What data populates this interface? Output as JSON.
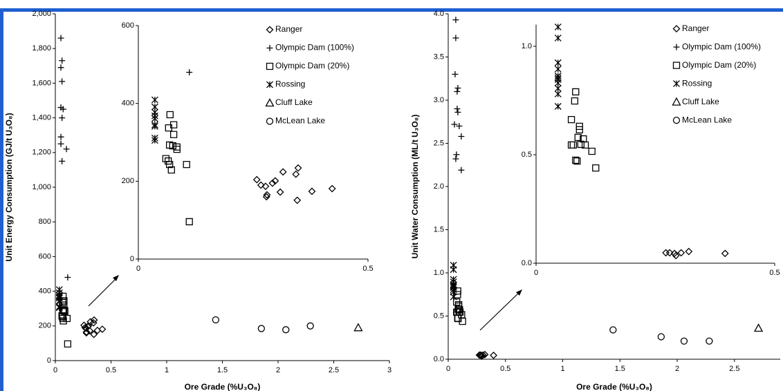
{
  "chart_data": [
    {
      "type": "scatter",
      "xlabel": "Ore Grade (%U₃O₈)",
      "ylabel": "Unit Energy Consumption (GJ/t U₃O₈)",
      "color": "#000000",
      "xlim": [
        0,
        3
      ],
      "ylim": [
        0,
        2000
      ],
      "xticks": [
        0,
        0.5,
        1,
        1.5,
        2,
        2.5,
        3
      ],
      "yticks": [
        0,
        200,
        400,
        600,
        800,
        {
          "value": 1000,
          "label": "1,000"
        },
        {
          "value": 1200,
          "label": "1,200"
        },
        {
          "value": 1400,
          "label": "1,400"
        },
        {
          "value": 1600,
          "label": "1,600"
        },
        {
          "value": 1800,
          "label": "1,800"
        },
        {
          "value": 2000,
          "label": "2,000"
        }
      ],
      "series": [
        {
          "marker": "diamond",
          "x": [
            0.258,
            0.267,
            0.277,
            0.28,
            0.279,
            0.292,
            0.298,
            0.309,
            0.315,
            0.343,
            0.348,
            0.346,
            0.378,
            0.422
          ],
          "values": [
            204,
            190,
            187,
            165,
            160,
            195,
            201,
            172,
            224,
            218,
            234,
            151,
            174,
            181
          ]
        },
        {
          "marker": "plus",
          "x": [
            0.05,
            0.06,
            0.05,
            0.06,
            0.05,
            0.07,
            0.06,
            0.05,
            0.05,
            0.1,
            0.06,
            0.111
          ],
          "values": [
            1860,
            1730,
            1690,
            1610,
            1460,
            1450,
            1400,
            1290,
            1250,
            1220,
            1150,
            480
          ]
        },
        {
          "marker": "square",
          "x": [
            0.069,
            0.066,
            0.077,
            0.077,
            0.068,
            0.075,
            0.084,
            0.084,
            0.06,
            0.065,
            0.068,
            0.072,
            0.105,
            0.111
          ],
          "values": [
            371,
            337,
            345,
            320,
            293,
            291,
            288,
            282,
            258,
            252,
            243,
            229,
            243,
            96
          ]
        },
        {
          "marker": "asterisk",
          "x": [
            0.036,
            0.036,
            0.036,
            0.036,
            0.036,
            0.036,
            0.036,
            0.036,
            0.036
          ],
          "values": [
            409,
            391,
            377,
            368,
            361,
            345,
            341,
            311,
            305
          ]
        },
        {
          "marker": "triangle",
          "x": [
            2.72
          ],
          "values": [
            190
          ]
        },
        {
          "marker": "circle",
          "x": [
            1.44,
            1.85,
            2.07,
            2.29
          ],
          "values": [
            235,
            185,
            178,
            200
          ]
        }
      ]
    },
    {
      "type": "scatter",
      "color": "#000000",
      "legend": "top right",
      "xlim": [
        0,
        0.5
      ],
      "ylim": [
        0,
        600
      ],
      "xticks": [
        0,
        0.5
      ],
      "yticks": [
        0,
        200,
        400,
        600
      ],
      "series": [
        {
          "name": "Ranger",
          "marker": "diamond",
          "x": [
            0.258,
            0.267,
            0.277,
            0.28,
            0.279,
            0.292,
            0.298,
            0.309,
            0.315,
            0.343,
            0.348,
            0.346,
            0.378,
            0.422
          ],
          "values": [
            204,
            190,
            187,
            165,
            160,
            195,
            201,
            172,
            224,
            218,
            234,
            151,
            174,
            181
          ]
        },
        {
          "name": "Olympic Dam (100%)",
          "marker": "plus",
          "x": [
            0.111
          ],
          "values": [
            480
          ]
        },
        {
          "name": "Olympic Dam (20%)",
          "marker": "square",
          "x": [
            0.069,
            0.066,
            0.077,
            0.077,
            0.068,
            0.075,
            0.084,
            0.084,
            0.06,
            0.065,
            0.068,
            0.072,
            0.105,
            0.111
          ],
          "values": [
            371,
            337,
            345,
            320,
            293,
            291,
            288,
            282,
            258,
            252,
            243,
            229,
            243,
            96
          ]
        },
        {
          "name": "Rossing",
          "marker": "asterisk",
          "x": [
            0.036,
            0.036,
            0.036,
            0.036,
            0.036,
            0.036,
            0.036,
            0.036,
            0.036
          ],
          "values": [
            409,
            391,
            377,
            368,
            361,
            345,
            341,
            311,
            305
          ]
        },
        {
          "name": "Cluff Lake",
          "marker": "triangle",
          "x": [],
          "values": []
        },
        {
          "name": "McLean Lake",
          "marker": "circle",
          "x": [],
          "values": []
        }
      ]
    },
    {
      "type": "scatter",
      "xlabel": "Ore Grade (%U₃O₈)",
      "ylabel": "Unit Water Consumption (ML/t U₃O₈)",
      "color": "#000000",
      "xlim": [
        0,
        2.9
      ],
      "ylim": [
        0,
        4
      ],
      "xticks": [
        0,
        0.5,
        1,
        1.5,
        2,
        2.5
      ],
      "yticks": [
        {
          "value": 0,
          "label": "0.0"
        },
        0.5,
        {
          "value": 1,
          "label": "1.0"
        },
        1.5,
        {
          "value": 2,
          "label": "2.0"
        },
        2.5,
        {
          "value": 3,
          "label": "3.0"
        },
        3.5,
        {
          "value": 4,
          "label": "4.0"
        }
      ],
      "series": [
        {
          "marker": "diamond",
          "x": [
            0.272,
            0.28,
            0.29,
            0.293,
            0.304,
            0.32,
            0.396
          ],
          "values": [
            0.048,
            0.048,
            0.045,
            0.035,
            0.048,
            0.054,
            0.045
          ]
        },
        {
          "marker": "plus",
          "x": [
            0.066,
            0.066,
            0.06,
            0.084,
            0.078,
            0.078,
            0.084,
            0.054,
            0.096,
            0.114,
            0.072,
            0.066,
            0.114
          ],
          "values": [
            3.93,
            3.72,
            3.3,
            3.14,
            3.1,
            2.9,
            2.86,
            2.72,
            2.7,
            2.58,
            2.37,
            2.32,
            2.19
          ]
        },
        {
          "marker": "square",
          "x": [
            0.083,
            0.081,
            0.074,
            0.091,
            0.091,
            0.088,
            0.099,
            0.094,
            0.074,
            0.078,
            0.103,
            0.117,
            0.083,
            0.086,
            0.125
          ],
          "values": [
            0.79,
            0.748,
            0.662,
            0.631,
            0.615,
            0.58,
            0.573,
            0.548,
            0.545,
            0.545,
            0.545,
            0.516,
            0.475,
            0.471,
            0.439
          ]
        },
        {
          "marker": "asterisk",
          "x": [
            0.046,
            0.046,
            0.046,
            0.046,
            0.046,
            0.046,
            0.046,
            0.046,
            0.046,
            0.046,
            0.046
          ],
          "values": [
            1.089,
            1.038,
            0.924,
            0.895,
            0.863,
            0.847,
            0.854,
            0.831,
            0.806,
            0.78,
            0.723
          ]
        },
        {
          "marker": "triangle",
          "x": [
            2.71
          ],
          "values": [
            0.36
          ]
        },
        {
          "marker": "circle",
          "x": [
            1.44,
            1.86,
            2.06,
            2.28
          ],
          "values": [
            0.34,
            0.26,
            0.21,
            0.21
          ]
        }
      ]
    },
    {
      "type": "scatter",
      "color": "#000000",
      "legend": "top right",
      "xlim": [
        0,
        0.5
      ],
      "ylim": [
        0,
        1.1
      ],
      "xticks": [
        0,
        0.5
      ],
      "yticks": [
        {
          "value": 0,
          "label": "0.0"
        },
        0.5,
        {
          "value": 1,
          "label": "1.0"
        }
      ],
      "series": [
        {
          "name": "Ranger",
          "marker": "diamond",
          "x": [
            0.272,
            0.28,
            0.29,
            0.293,
            0.304,
            0.32,
            0.396
          ],
          "values": [
            0.048,
            0.048,
            0.045,
            0.035,
            0.048,
            0.054,
            0.045
          ]
        },
        {
          "name": "Olympic Dam (100%)",
          "marker": "plus",
          "x": [],
          "values": []
        },
        {
          "name": "Olympic Dam (20%)",
          "marker": "square",
          "x": [
            0.083,
            0.081,
            0.074,
            0.091,
            0.091,
            0.088,
            0.099,
            0.094,
            0.074,
            0.078,
            0.103,
            0.117,
            0.083,
            0.086,
            0.125
          ],
          "values": [
            0.79,
            0.748,
            0.662,
            0.631,
            0.615,
            0.58,
            0.573,
            0.548,
            0.545,
            0.545,
            0.545,
            0.516,
            0.475,
            0.471,
            0.439
          ]
        },
        {
          "name": "Rossing",
          "marker": "asterisk",
          "x": [
            0.046,
            0.046,
            0.046,
            0.046,
            0.046,
            0.046,
            0.046,
            0.046,
            0.046,
            0.046,
            0.046
          ],
          "values": [
            1.089,
            1.038,
            0.924,
            0.895,
            0.863,
            0.847,
            0.854,
            0.831,
            0.806,
            0.78,
            0.723
          ]
        },
        {
          "name": "Cluff Lake",
          "marker": "triangle",
          "x": [],
          "values": []
        },
        {
          "name": "McLean Lake",
          "marker": "circle",
          "x": [],
          "values": []
        }
      ]
    }
  ]
}
